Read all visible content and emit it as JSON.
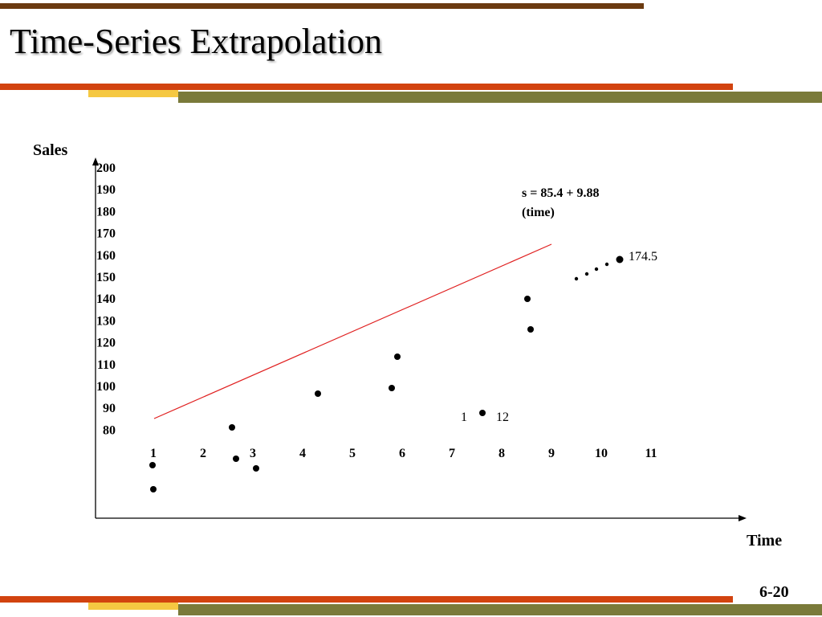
{
  "slide": {
    "title": "Time-Series Extrapolation",
    "page_number": "6-20",
    "colors": {
      "dark_brown": "#6b3a10",
      "orange_red": "#d2430f",
      "yellow": "#f5c842",
      "olive": "#7a7a3a",
      "trend_line": "#e02020"
    }
  },
  "chart_data": {
    "type": "scatter",
    "ylabel": "Sales",
    "xlabel": "Time",
    "y_ticks": [
      "200",
      "190",
      "180",
      "170",
      "160",
      "150",
      "140",
      "130",
      "120",
      "110",
      "100",
      "90",
      "80"
    ],
    "x_ticks": [
      "1",
      "2",
      "3",
      "4",
      "5",
      "6",
      "7",
      "8",
      "9",
      "10",
      "11"
    ],
    "equation": [
      "s = 85.4 + 9.88",
      "(time)"
    ],
    "annotations": [
      "174.5",
      "1",
      "12"
    ]
  }
}
